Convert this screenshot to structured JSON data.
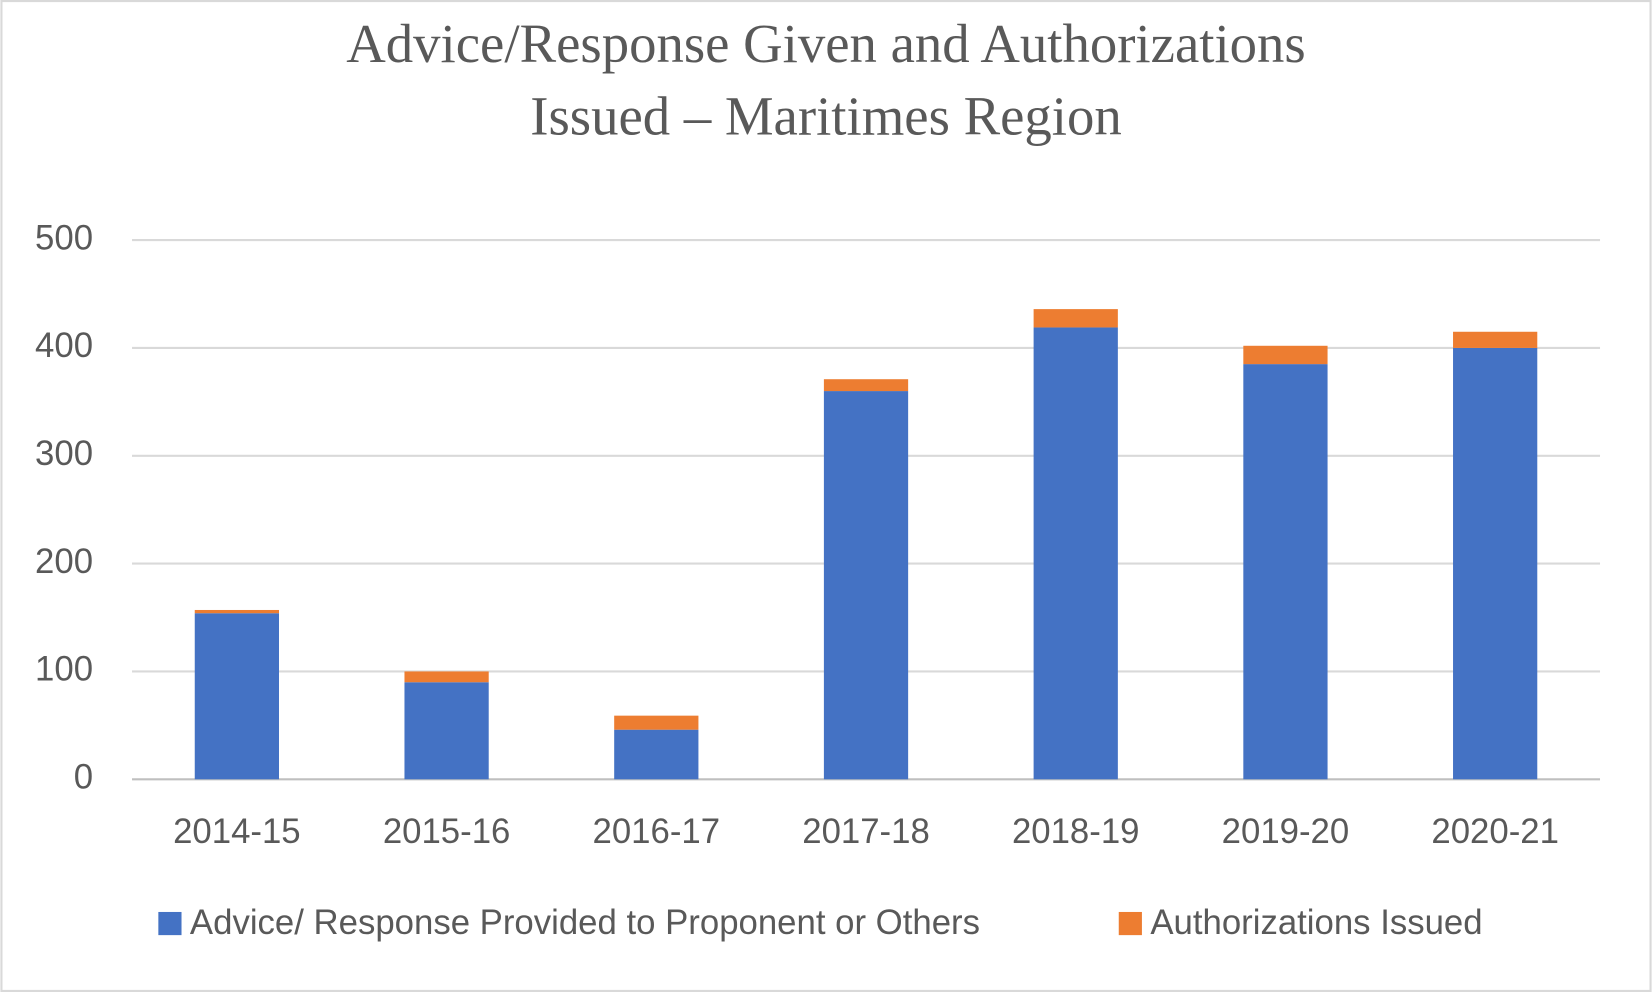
{
  "chart_data": {
    "type": "stacked-bar",
    "title": [
      "Advice/Response Given and Authorizations",
      "Issued – Maritimes Region"
    ],
    "categories": [
      "2014-15",
      "2015-16",
      "2016-17",
      "2017-18",
      "2018-19",
      "2019-20",
      "2020-21"
    ],
    "series": [
      {
        "name": "Advice/ Response Provided to Proponent or Others",
        "color": "#4472c4",
        "values": [
          154,
          90,
          46,
          360,
          419,
          385,
          400
        ]
      },
      {
        "name": "Authorizations Issued",
        "color": "#ed7d31",
        "values": [
          3,
          10,
          13,
          11,
          17,
          17,
          15
        ]
      }
    ],
    "ylim": [
      0,
      500
    ],
    "yticks": [
      0,
      100,
      200,
      300,
      400,
      500
    ],
    "grid": true,
    "legend": "bottom"
  }
}
